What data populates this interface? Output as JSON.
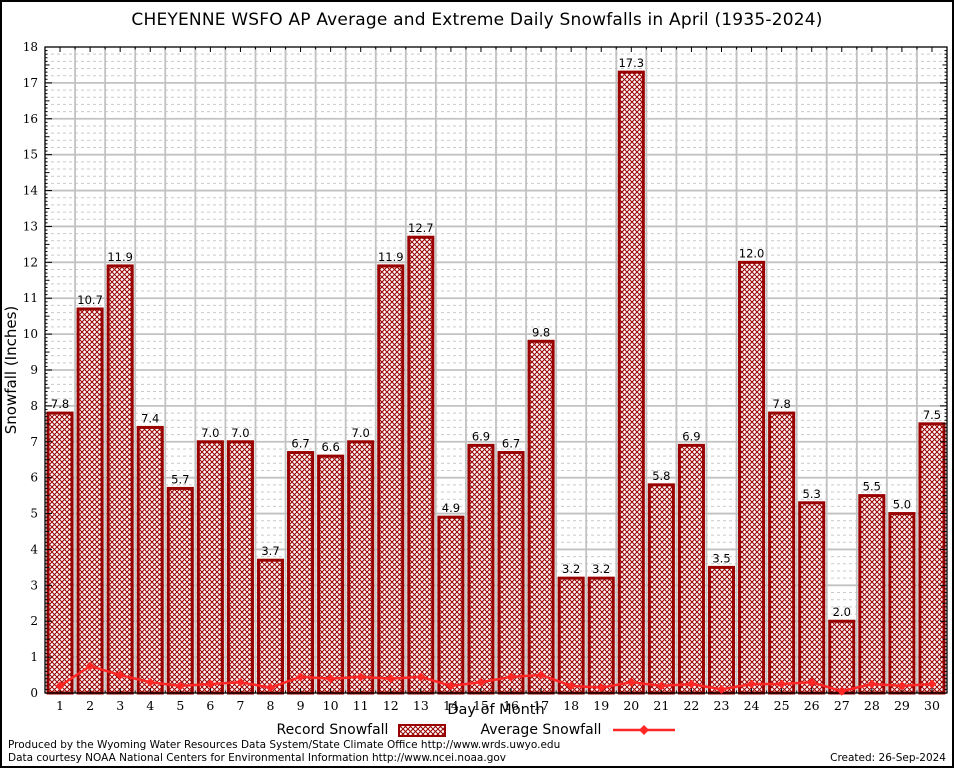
{
  "title": "CHEYENNE WSFO AP Average and Extreme Daily Snowfalls in April (1935-2024)",
  "chart_data": {
    "type": "bar",
    "x": [
      1,
      2,
      3,
      4,
      5,
      6,
      7,
      8,
      9,
      10,
      11,
      12,
      13,
      14,
      15,
      16,
      17,
      18,
      19,
      20,
      21,
      22,
      23,
      24,
      25,
      26,
      27,
      28,
      29,
      30
    ],
    "series": [
      {
        "name": "Record Snowfall",
        "type": "bar",
        "values": [
          7.8,
          10.7,
          11.9,
          7.4,
          5.7,
          7.0,
          7.0,
          3.7,
          6.7,
          6.6,
          7.0,
          11.9,
          12.7,
          4.9,
          6.9,
          6.7,
          9.8,
          3.2,
          3.2,
          17.3,
          5.8,
          6.9,
          3.5,
          12.0,
          7.8,
          5.3,
          2.0,
          5.5,
          5.0,
          7.5
        ],
        "data_labels": [
          "7.8",
          "10.7",
          "11.9",
          "7.4",
          "5.7",
          "7.0",
          "7.0",
          "3.7",
          "6.7",
          "6.6",
          "7.0",
          "11.9",
          "12.7",
          "4.9",
          "6.9",
          "6.7",
          "9.8",
          "3.2",
          "3.2",
          "17.3",
          "5.8",
          "6.9",
          "3.5",
          "12.0",
          "7.8",
          "5.3",
          "2.0",
          "5.5",
          "5.0",
          "7.5"
        ]
      },
      {
        "name": "Average Snowfall",
        "type": "line",
        "values": [
          0.2,
          0.75,
          0.5,
          0.3,
          0.2,
          0.25,
          0.3,
          0.15,
          0.45,
          0.4,
          0.45,
          0.4,
          0.45,
          0.2,
          0.3,
          0.45,
          0.5,
          0.2,
          0.15,
          0.3,
          0.2,
          0.25,
          0.1,
          0.25,
          0.25,
          0.3,
          0.05,
          0.25,
          0.2,
          0.25
        ]
      }
    ],
    "xlabel": "Day of Month",
    "ylabel": "Snowfall (Inches)",
    "ylim": [
      0,
      18
    ],
    "ytick_step": 1,
    "xtick_labels": [
      "1",
      "2",
      "3",
      "4",
      "5",
      "6",
      "7",
      "8",
      "9",
      "10",
      "11",
      "12",
      "13",
      "14",
      "15",
      "16",
      "17",
      "18",
      "19",
      "20",
      "21",
      "22",
      "23",
      "24",
      "25",
      "26",
      "27",
      "28",
      "29",
      "30"
    ],
    "grid": "major solid + minor dotted",
    "legend_position": "bottom",
    "colors": {
      "bar_edge": "#990000",
      "bar_hatch": "#990000",
      "bar_fill_bg": "#ffffff",
      "line": "#ff2626",
      "grid_major": "#c2c2c2",
      "grid_minor": "#c9c9c9",
      "axis": "#000000",
      "text": "#000000"
    }
  },
  "legend": {
    "record_label": "Record Snowfall",
    "average_label": "Average Snowfall"
  },
  "footer": {
    "line1": "Produced by the Wyoming Water Resources Data System/State Climate Office http://www.wrds.uwyo.edu",
    "line2": "Data courtesy NOAA National Centers for Environmental Information http://www.ncei.noaa.gov",
    "created": "Created: 26-Sep-2024"
  }
}
